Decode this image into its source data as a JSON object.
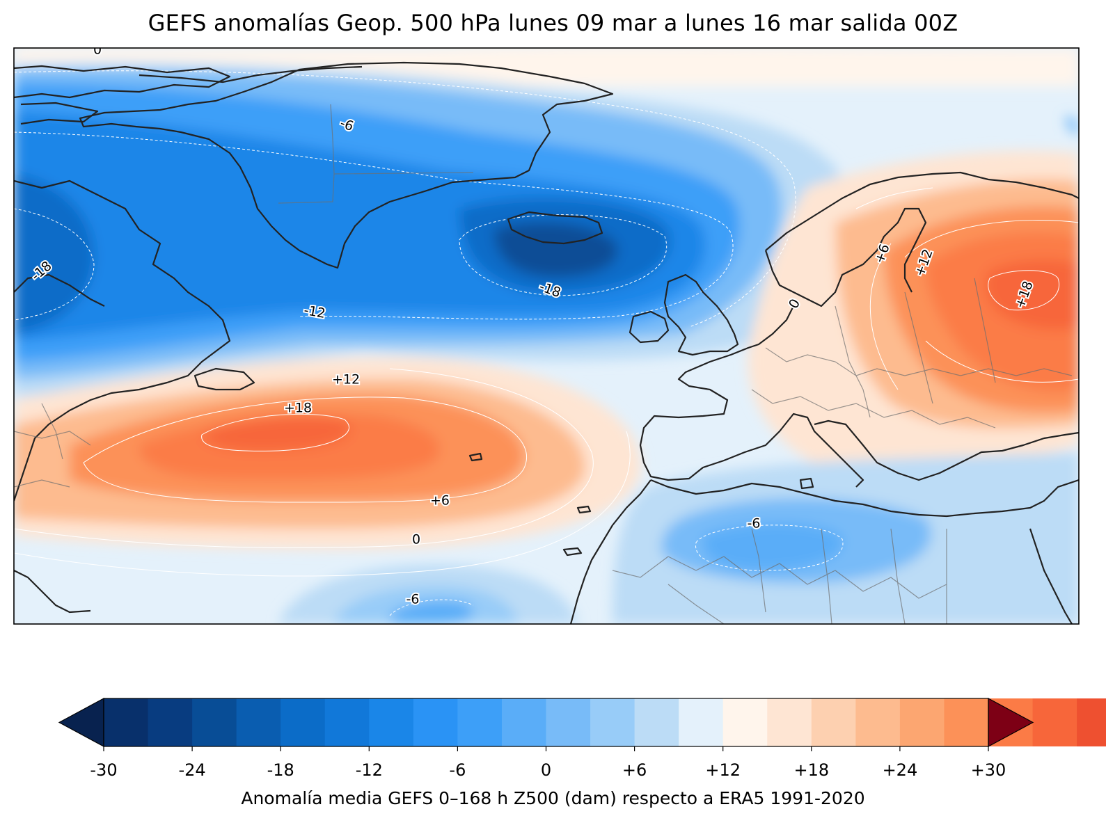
{
  "title": "GEFS anomalías Geop. 500 hPa lunes 09 mar a lunes 16 mar salida 00Z",
  "map": {
    "contour_labels": [
      "0",
      "-6",
      "-18",
      "-12",
      "-18",
      "+12",
      "+18",
      "+6",
      "0",
      "-6",
      "-6",
      "+6",
      "+12",
      "+18",
      "0"
    ]
  },
  "colorbar": {
    "min": -30,
    "max": 30,
    "step": 3,
    "extend": "both",
    "colors": [
      "#08306b",
      "#083c80",
      "#084d96",
      "#0a5db0",
      "#0b6cc8",
      "#1178d9",
      "#1a86e8",
      "#2a93f5",
      "#3d9ff8",
      "#5aadf8",
      "#78bbf8",
      "#98ccf8",
      "#bcdcf6",
      "#e4f1fb",
      "#fff5ec",
      "#fee5d3",
      "#fdd0b0",
      "#fdbb8f",
      "#fca671",
      "#fc9158",
      "#fb7b46",
      "#f7663a",
      "#ee5030",
      "#e03c2a",
      "#cf2a24",
      "#b81d21",
      "#9f1019",
      "#7f0a16"
    ],
    "extend_low_color": "#08224f",
    "extend_high_color": "#7d0015",
    "tick_values": [
      -30,
      -24,
      -18,
      -12,
      -6,
      0,
      6,
      12,
      18,
      24,
      30
    ],
    "tick_labels": [
      "-30",
      "-24",
      "-18",
      "-12",
      "-6",
      "0",
      "+6",
      "+12",
      "+18",
      "+24",
      "+30"
    ],
    "label": "Anomalía media GEFS 0–168 h Z500 (dam) respecto a ERA5 1991-2020"
  }
}
